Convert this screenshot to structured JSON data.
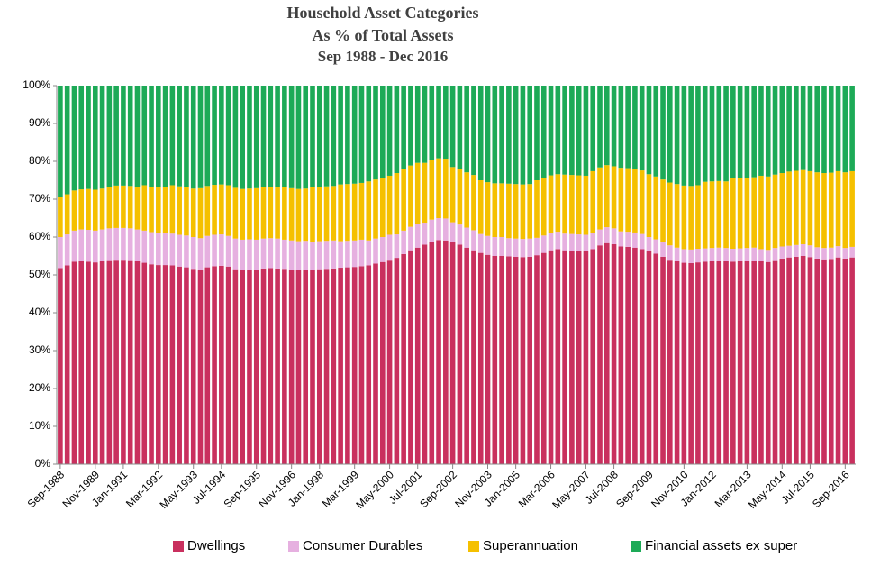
{
  "chart_data": {
    "type": "stacked_bar",
    "title": "Household Asset Categories",
    "subtitle": [
      "As % of Total Assets",
      "Sep 1988 - Dec 2016"
    ],
    "categories": [
      "Sep-1988",
      null,
      null,
      null,
      null,
      "Nov-1989",
      null,
      null,
      null,
      "Jan-1991",
      null,
      null,
      null,
      null,
      "Mar-1992",
      null,
      null,
      null,
      null,
      "May-1993",
      null,
      null,
      null,
      "Jul-1994",
      null,
      null,
      null,
      null,
      "Sep-1995",
      null,
      null,
      null,
      null,
      "Nov-1996",
      null,
      null,
      null,
      "Jan-1998",
      null,
      null,
      null,
      null,
      "Mar-1999",
      null,
      null,
      null,
      null,
      "May-2000",
      null,
      null,
      null,
      "Jul-2001",
      null,
      null,
      null,
      null,
      "Sep-2002",
      null,
      null,
      null,
      null,
      "Nov-2003",
      null,
      null,
      null,
      "Jan-2005",
      null,
      null,
      null,
      null,
      "Mar-2006",
      null,
      null,
      null,
      null,
      "May-2007",
      null,
      null,
      null,
      "Jul-2008",
      null,
      null,
      null,
      null,
      "Sep-2009",
      null,
      null,
      null,
      null,
      "Nov-2010",
      null,
      null,
      null,
      "Jan-2012",
      null,
      null,
      null,
      null,
      "Mar-2013",
      null,
      null,
      null,
      null,
      "May-2014",
      null,
      null,
      null,
      "Jul-2015",
      null,
      null,
      null,
      null,
      "Sep-2016",
      null
    ],
    "series": [
      {
        "name": "Dwellings",
        "color": "#c9305e",
        "values": [
          51.8,
          52.5,
          53.5,
          53.8,
          53.5,
          53.3,
          53.6,
          53.9,
          54.0,
          54.0,
          53.9,
          53.6,
          53.2,
          52.8,
          52.6,
          52.6,
          52.5,
          52.2,
          52.0,
          51.6,
          51.4,
          52.0,
          52.3,
          52.4,
          52.2,
          51.5,
          51.2,
          51.3,
          51.4,
          51.7,
          51.8,
          51.7,
          51.6,
          51.4,
          51.2,
          51.3,
          51.4,
          51.5,
          51.6,
          51.7,
          51.9,
          52.0,
          52.1,
          52.3,
          52.5,
          53.0,
          53.4,
          54.0,
          54.5,
          55.5,
          56.5,
          57.2,
          58.0,
          58.8,
          59.2,
          59.1,
          58.6,
          58.0,
          57.2,
          56.5,
          55.8,
          55.3,
          55.0,
          55.0,
          54.9,
          54.8,
          54.7,
          54.8,
          55.2,
          55.8,
          56.5,
          56.8,
          56.5,
          56.4,
          56.3,
          56.2,
          56.8,
          57.8,
          58.4,
          58.1,
          57.5,
          57.4,
          57.2,
          56.8,
          56.2,
          55.6,
          54.8,
          54.0,
          53.6,
          53.2,
          53.1,
          53.3,
          53.5,
          53.6,
          53.7,
          53.6,
          53.5,
          53.6,
          53.7,
          53.8,
          53.6,
          53.4,
          53.9,
          54.3,
          54.6,
          54.8,
          55.0,
          54.7,
          54.3,
          54.1,
          54.2,
          54.6,
          54.3,
          54.6
        ]
      },
      {
        "name": "Consumer Durables",
        "color": "#e6b0e0",
        "values": [
          8.2,
          8.2,
          8.2,
          8.2,
          8.4,
          8.4,
          8.4,
          8.4,
          8.4,
          8.4,
          8.4,
          8.4,
          8.5,
          8.5,
          8.5,
          8.5,
          8.4,
          8.4,
          8.4,
          8.4,
          8.3,
          8.3,
          8.3,
          8.3,
          8.1,
          8.1,
          8.1,
          8.1,
          7.9,
          7.9,
          7.9,
          7.9,
          7.7,
          7.7,
          7.7,
          7.7,
          7.4,
          7.4,
          7.4,
          7.4,
          7.0,
          7.0,
          7.0,
          7.0,
          6.6,
          6.6,
          6.6,
          6.6,
          6.2,
          6.2,
          6.2,
          6.2,
          5.8,
          5.8,
          5.8,
          5.8,
          5.3,
          5.3,
          5.3,
          5.3,
          5.0,
          5.0,
          5.0,
          5.0,
          4.8,
          4.8,
          4.8,
          4.8,
          4.6,
          4.6,
          4.6,
          4.6,
          4.4,
          4.4,
          4.4,
          4.4,
          4.2,
          4.2,
          4.2,
          4.2,
          4.0,
          4.0,
          4.0,
          4.0,
          3.8,
          3.8,
          3.8,
          3.8,
          3.6,
          3.6,
          3.6,
          3.6,
          3.5,
          3.5,
          3.5,
          3.5,
          3.4,
          3.4,
          3.4,
          3.4,
          3.2,
          3.2,
          3.2,
          3.2,
          3.1,
          3.1,
          3.1,
          3.1,
          3.0,
          3.0,
          3.0,
          3.0,
          2.8,
          2.8
        ]
      },
      {
        "name": "Superannuation",
        "color": "#f5c000",
        "values": [
          10.6,
          10.6,
          10.6,
          10.6,
          10.8,
          10.8,
          10.8,
          10.8,
          11.2,
          11.2,
          11.2,
          11.2,
          12.0,
          12.0,
          12.0,
          12.0,
          12.8,
          12.8,
          12.8,
          12.8,
          13.2,
          13.2,
          13.2,
          13.2,
          13.4,
          13.4,
          13.4,
          13.4,
          13.6,
          13.6,
          13.6,
          13.6,
          13.8,
          13.8,
          13.8,
          13.8,
          14.4,
          14.4,
          14.4,
          14.4,
          15.0,
          15.0,
          15.0,
          15.0,
          15.6,
          15.6,
          15.6,
          15.6,
          16.2,
          16.2,
          16.2,
          16.2,
          15.8,
          15.8,
          15.8,
          15.8,
          14.6,
          14.6,
          14.6,
          14.6,
          14.2,
          14.2,
          14.2,
          14.2,
          14.4,
          14.4,
          14.4,
          14.4,
          15.2,
          15.2,
          15.2,
          15.2,
          15.6,
          15.6,
          15.6,
          15.6,
          16.4,
          16.4,
          16.4,
          16.4,
          16.8,
          16.8,
          16.8,
          16.8,
          16.6,
          16.6,
          16.6,
          16.6,
          16.8,
          16.8,
          16.8,
          16.8,
          17.6,
          17.6,
          17.6,
          17.6,
          18.6,
          18.6,
          18.6,
          18.6,
          19.4,
          19.4,
          19.4,
          19.4,
          19.6,
          19.6,
          19.6,
          19.6,
          19.8,
          19.8,
          19.8,
          19.8,
          20.0,
          20.0
        ]
      },
      {
        "name": "Financial assets ex super",
        "color": "#1daa57",
        "values": [
          29.4,
          28.7,
          27.7,
          27.4,
          27.3,
          27.5,
          27.2,
          26.9,
          26.4,
          26.4,
          26.5,
          26.8,
          26.3,
          26.7,
          26.9,
          26.9,
          26.3,
          26.6,
          26.8,
          27.2,
          27.1,
          26.5,
          26.2,
          26.1,
          26.3,
          27.0,
          27.3,
          27.2,
          27.1,
          26.8,
          26.7,
          26.8,
          26.9,
          27.1,
          27.3,
          27.2,
          26.8,
          26.7,
          26.6,
          26.5,
          26.1,
          26.0,
          25.9,
          25.7,
          25.3,
          24.8,
          24.4,
          23.8,
          23.1,
          22.1,
          21.1,
          20.4,
          20.4,
          19.6,
          19.2,
          19.3,
          21.5,
          22.1,
          22.9,
          23.6,
          25.0,
          25.5,
          25.8,
          25.8,
          25.9,
          26.0,
          26.1,
          26.0,
          25.0,
          24.4,
          23.7,
          23.4,
          23.5,
          23.6,
          23.7,
          23.8,
          22.6,
          21.6,
          21.0,
          21.3,
          21.7,
          21.8,
          22.0,
          22.4,
          23.4,
          24.0,
          24.8,
          25.6,
          26.0,
          26.4,
          26.5,
          26.3,
          25.4,
          25.3,
          25.2,
          25.3,
          24.5,
          24.4,
          24.3,
          24.2,
          23.8,
          24.0,
          23.5,
          23.1,
          22.7,
          22.5,
          22.3,
          22.6,
          22.9,
          23.1,
          23.0,
          22.6,
          22.9,
          22.6
        ]
      }
    ],
    "ylim": [
      0,
      100
    ],
    "yticks": [
      {
        "value": 0,
        "label": "0%"
      },
      {
        "value": 10,
        "label": "10%"
      },
      {
        "value": 20,
        "label": "20%"
      },
      {
        "value": 30,
        "label": "30%"
      },
      {
        "value": 40,
        "label": "40%"
      },
      {
        "value": 50,
        "label": "50%"
      },
      {
        "value": 60,
        "label": "60%"
      },
      {
        "value": 70,
        "label": "70%"
      },
      {
        "value": 80,
        "label": "80%"
      },
      {
        "value": 90,
        "label": "90%"
      },
      {
        "value": 100,
        "label": "100%"
      }
    ],
    "grid": false,
    "legend": "bottom"
  }
}
